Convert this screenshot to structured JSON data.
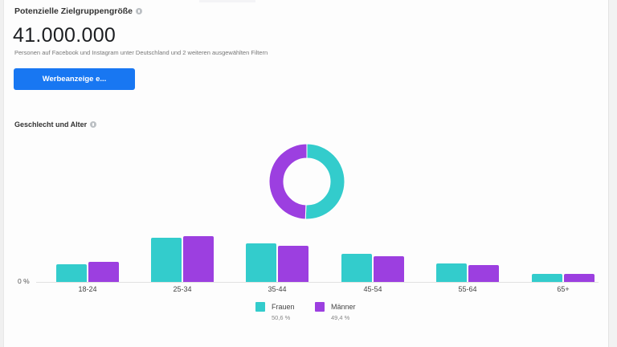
{
  "header": {
    "title": "Potenzielle Zielgruppengröße",
    "audience_size": "41.000.000",
    "description": "Personen auf Facebook und Instagram unter Deutschland und 2 weiteren ausgewählten Filtern",
    "button_label": "Werbeanzeige e..."
  },
  "section": {
    "title": "Geschlecht und Alter"
  },
  "colors": {
    "frauen": "#33cccc",
    "maenner": "#9c3fe0",
    "button": "#1877f2"
  },
  "legend": [
    {
      "name": "Frauen",
      "value": "50,6 %"
    },
    {
      "name": "Männer",
      "value": "49,4 %"
    }
  ],
  "axis": {
    "zero_label": "0 %"
  },
  "chart_data": [
    {
      "type": "pie",
      "title": "Geschlecht",
      "categories": [
        "Frauen",
        "Männer"
      ],
      "values": [
        50.6,
        49.4
      ],
      "donut": true
    },
    {
      "type": "bar",
      "title": "Geschlecht und Alter",
      "categories": [
        "18-24",
        "25-34",
        "35-44",
        "45-54",
        "55-64",
        "65+"
      ],
      "series": [
        {
          "name": "Frauen",
          "values": [
            4.1,
            10.1,
            8.8,
            6.4,
            4.3,
            1.9
          ]
        },
        {
          "name": "Männer",
          "values": [
            4.6,
            10.4,
            8.2,
            5.9,
            3.8,
            1.9
          ]
        }
      ],
      "xlabel": "",
      "ylabel": "",
      "ytick_labels": [
        "0 %"
      ],
      "legend_position": "bottom",
      "grid": false
    }
  ]
}
